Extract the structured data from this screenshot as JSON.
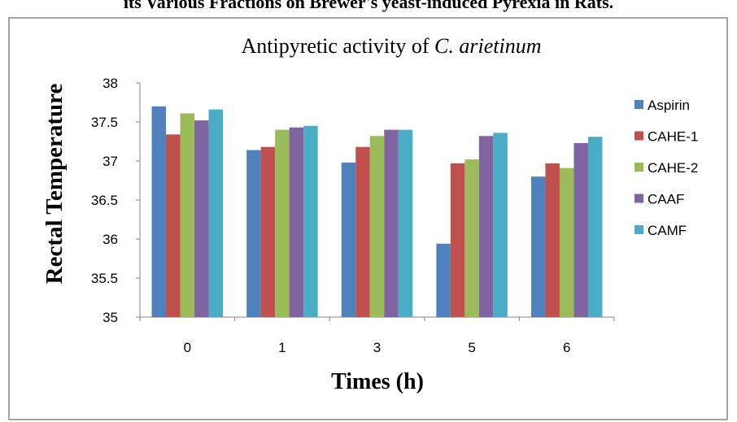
{
  "page_heading": "its Various Fractions on Brewer's yeast-induced Pyrexia in Rats.",
  "colors": {
    "Aspirin": "#4F81BD",
    "CAHE-1": "#C0504D",
    "CAHE-2": "#9BBB59",
    "CAAF": "#8064A2",
    "CAMF": "#4BACC6"
  },
  "chart_data": {
    "type": "bar",
    "title_prefix": "Antipyretic activity of ",
    "title_italic": "C. arietinum",
    "xlabel": "Times (h)",
    "ylabel": "Rectal Temperature",
    "categories": [
      "0",
      "1",
      "3",
      "5",
      "6"
    ],
    "ylim": [
      35,
      38
    ],
    "yticks": [
      "38",
      "37.5",
      "37",
      "36.5",
      "36",
      "35.5",
      "35"
    ],
    "legend_position": "right",
    "grid": false,
    "series": [
      {
        "name": "Aspirin",
        "values": [
          37.7,
          37.14,
          36.98,
          35.94,
          36.8
        ]
      },
      {
        "name": "CAHE-1",
        "values": [
          37.34,
          37.18,
          37.18,
          36.97,
          36.97
        ]
      },
      {
        "name": "CAHE-2",
        "values": [
          37.61,
          37.4,
          37.32,
          37.02,
          36.91
        ]
      },
      {
        "name": "CAAF",
        "values": [
          37.52,
          37.43,
          37.4,
          37.32,
          37.23
        ]
      },
      {
        "name": "CAMF",
        "values": [
          37.66,
          37.45,
          37.4,
          37.36,
          37.31
        ]
      }
    ]
  }
}
